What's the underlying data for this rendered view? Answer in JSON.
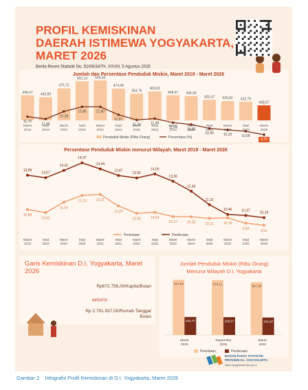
{
  "header": {
    "title_lines": [
      "PROFIL KEMISKINAN",
      "DAERAH ISTIMEWA YOGYAKARTA,",
      "MARET 2026"
    ],
    "subtitle": "Berita Resmi Statistik No. 52/08/34/Th. XXVIII, 5 Agustus 2026"
  },
  "chart_data": [
    {
      "type": "combo",
      "title": "Jumlah dan Persentase Penduduk Miskin, Maret 2019 - Maret 2026",
      "categories": [
        "Maret 2019",
        "Sept 2019",
        "Maret 2020",
        "Sept 2020",
        "Maret 2021",
        "Sept 2021",
        "Maret 2022",
        "Sept 2022",
        "Maret 2023",
        "Maret 2024",
        "Sept 2024",
        "Maret 2025",
        "Sept 2025",
        "Maret 2026"
      ],
      "series": [
        {
          "name": "Penduduk Miskin (Ribu Orang)",
          "color": "#f8c9a0",
          "last_color": "#e0531f",
          "values": [
            448.47,
            440.89,
            475.72,
            503.14,
            506.45,
            474.49,
            454.76,
            463.63,
            448.47,
            445.55,
            430.47,
            425.82,
            422.79,
            408.87
          ],
          "value_labels": [
            "448,47",
            "440,89",
            "475,72",
            "503,14",
            "506,45",
            "474,49",
            "454,76",
            "463,63",
            "448,47",
            "445,55",
            "430,47",
            "425,82",
            "422,79",
            "408,87"
          ]
        },
        {
          "name": "Persentase (%)",
          "color": "#7a2e1a",
          "axis": "y2",
          "values": [
            11.7,
            11.44,
            12.28,
            12.8,
            12.8,
            11.91,
            11.34,
            11.49,
            11.04,
            10.83,
            10.4,
            10.23,
            10.08,
            9.7
          ],
          "value_labels": [
            "11,70",
            "11,44",
            "12,28",
            "12,80",
            "12,80",
            "11,91",
            "11,34",
            "11,49",
            "11,04",
            "10,83",
            "10,40",
            "10,23",
            "10,08",
            "9,70"
          ]
        }
      ],
      "ylim": [
        350,
        520
      ],
      "y2lim": [
        9,
        13.2
      ]
    },
    {
      "type": "line",
      "title": "Persentase Penduduk Miskin menurut Wilayah, Maret 2019 - Maret 2026",
      "categories": [
        "Maret 2019",
        "Sept 2019",
        "Maret 2020",
        "Sept 2020",
        "Maret 2021",
        "Sept 2021",
        "Maret 2022",
        "Sept 2022",
        "Maret 2023",
        "Maret 2024",
        "Sept 2024",
        "Maret 2025",
        "Sept 2025",
        "Maret 2026"
      ],
      "series": [
        {
          "name": "Perkotaan",
          "color": "#f0a070",
          "values": [
            10.89,
            10.62,
            11.53,
            12.13,
            12.21,
            11.2,
            10.56,
            10.64,
            10.27,
            10.26,
            10.11,
            10.16,
            9.69,
            9.51
          ],
          "value_labels": [
            "10,89",
            "10,62",
            "11,53",
            "12,13",
            "12,21",
            "11,20",
            "10,56",
            "10,64",
            "10,27",
            "10,26",
            "10,11",
            "10,16",
            "9,69",
            "9,51"
          ]
        },
        {
          "name": "Perdesaan",
          "color": "#8b2a10",
          "values": [
            13.89,
            13.67,
            14.31,
            14.97,
            14.44,
            13.87,
            13.65,
            14.0,
            13.36,
            12.49,
            11.31,
            10.46,
            10.37,
            10.18
          ],
          "value_labels": [
            "13,89",
            "13,67",
            "14,31",
            "14,97",
            "14,44",
            "13,87",
            "13,65",
            "14,00",
            "13,36",
            "12,49",
            "11,31",
            "10,46",
            "10,37",
            "10,18"
          ]
        }
      ],
      "ylim": [
        9,
        15.5
      ]
    },
    {
      "type": "bar",
      "title": "Jumlah Penduduk Miskin (Ribu Orang)",
      "subtitle": "Menurut Wilayah D.I. Yogyakarta",
      "categories": [
        "Maret 2025",
        "September 2025",
        "Maret 2026"
      ],
      "series": [
        {
          "name": "Perkotaan",
          "color": "#f8c9a0",
          "values": [
            321.04,
            319.12,
            307.3
          ],
          "value_labels": [
            "321,04",
            "319,12",
            "307,30"
          ]
        },
        {
          "name": "Perdesaan",
          "color": "#7a2e1a",
          "values": [
            104.77,
            103.67,
            101.57
          ],
          "value_labels": [
            "104,77",
            "103,67",
            "101,57"
          ]
        }
      ],
      "ylim": [
        0,
        340
      ]
    }
  ],
  "poverty_line": {
    "title": "Garis Kemiskinan D.I. Yogyakarta, Maret 2026",
    "per_capita": "Rp672.756,00/Kapita/Bulan",
    "equivalent": "setara",
    "per_household": "Rp 2.791.937,00/Rumah Tangga/ Bulan"
  },
  "footer": {
    "org_lines": [
      "BADAN PUSAT STATISTIK",
      "PROVINSI D.I. YOGYAKARTA"
    ],
    "url": "https://yogyakarta.bps.go.id"
  },
  "caption": {
    "label": "Gambar 2",
    "text": "Infografis Profil Kemiskinan di D.I. Yogyakarta, Maret 2026"
  }
}
